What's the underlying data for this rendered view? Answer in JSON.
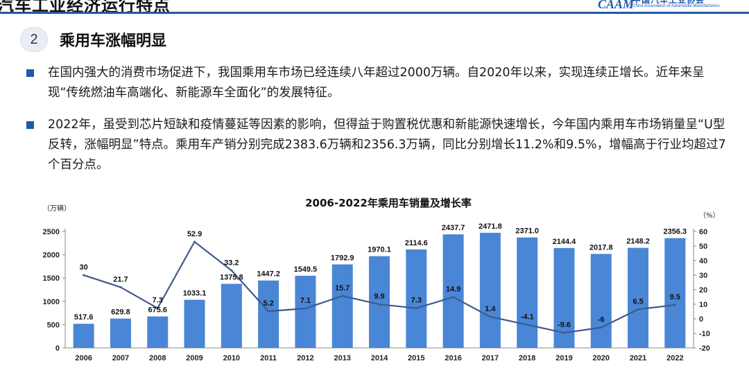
{
  "header": {
    "title": "汽车工业经济运行特点",
    "logo_cn": "中国汽车工业协会",
    "logo_en": "China Association of Automobile Manufacturers",
    "logo_mark": "CAAM"
  },
  "section": {
    "number": "2",
    "title": "乘用车涨幅明显"
  },
  "bullets": [
    "在国内强大的消费市场促进下，我国乘用车市场已经连续八年超过2000万辆。自2020年以来，实现连续正增长。近年来呈现“传统燃油车高端化、新能源车全面化”的发展特征。",
    "2022年，虽受到芯片短缺和疫情蔓延等因素的影响，但得益于购置税优惠和新能源快速增长，今年国内乘用车市场销量呈“U型反转，涨幅明显”特点。乘用车产销分别完成2383.6万辆和2356.3万辆，同比分别增长11.2%和9.5%，增幅高于行业均超过7个百分点。"
  ],
  "chart_data": {
    "type": "bar",
    "title": "2006-2022年乘用车销量及增长率",
    "categories": [
      "2006",
      "2007",
      "2008",
      "2009",
      "2010",
      "2011",
      "2012",
      "2013",
      "2014",
      "2015",
      "2016",
      "2017",
      "2018",
      "2019",
      "2020",
      "2021",
      "2022"
    ],
    "series": [
      {
        "type": "bar",
        "axis": "left",
        "values": [
          517.6,
          629.8,
          675.6,
          1033.1,
          1375.8,
          1447.2,
          1549.5,
          1792.9,
          1970.1,
          2114.6,
          2437.7,
          2471.8,
          2371.0,
          2144.4,
          2017.8,
          2148.2,
          2356.3
        ],
        "labels": [
          "517.6",
          "629.8",
          "675.6",
          "1033.1",
          "1375.8",
          "1447.2",
          "1549.5",
          "1792.9",
          "1970.1",
          "2114.6",
          "2437.7",
          "2471.8",
          "2371.0",
          "2144.4",
          "2017.8",
          "2148.2",
          "2356.3"
        ]
      },
      {
        "type": "line",
        "axis": "right",
        "values": [
          30,
          21.7,
          7.3,
          52.9,
          33.2,
          5.2,
          7.1,
          15.7,
          9.9,
          7.3,
          14.9,
          1.4,
          -4.1,
          -9.6,
          -6,
          6.5,
          9.5
        ],
        "labels": [
          "30",
          "21.7",
          "7.3",
          "52.9",
          "33.2",
          "5.2",
          "7.1",
          "15.7",
          "9.9",
          "7.3",
          "14.9",
          "1.4",
          "-4.1",
          "-9.6",
          "-6",
          "6.5",
          "9.5"
        ]
      }
    ],
    "left_axis": {
      "unit_label": "（万辆）",
      "ylim": [
        0,
        2500
      ],
      "ticks": [
        "0",
        "500",
        "1000",
        "1500",
        "2000",
        "2500"
      ]
    },
    "right_axis": {
      "unit_label": "（%）",
      "ylim": [
        -20,
        60
      ],
      "ticks": [
        "-20",
        "-10",
        "0",
        "10",
        "20",
        "30",
        "40",
        "50",
        "60"
      ]
    },
    "grid": false,
    "colors": {
      "bar": "#4a86d6",
      "line": "#3e5a8a"
    }
  }
}
